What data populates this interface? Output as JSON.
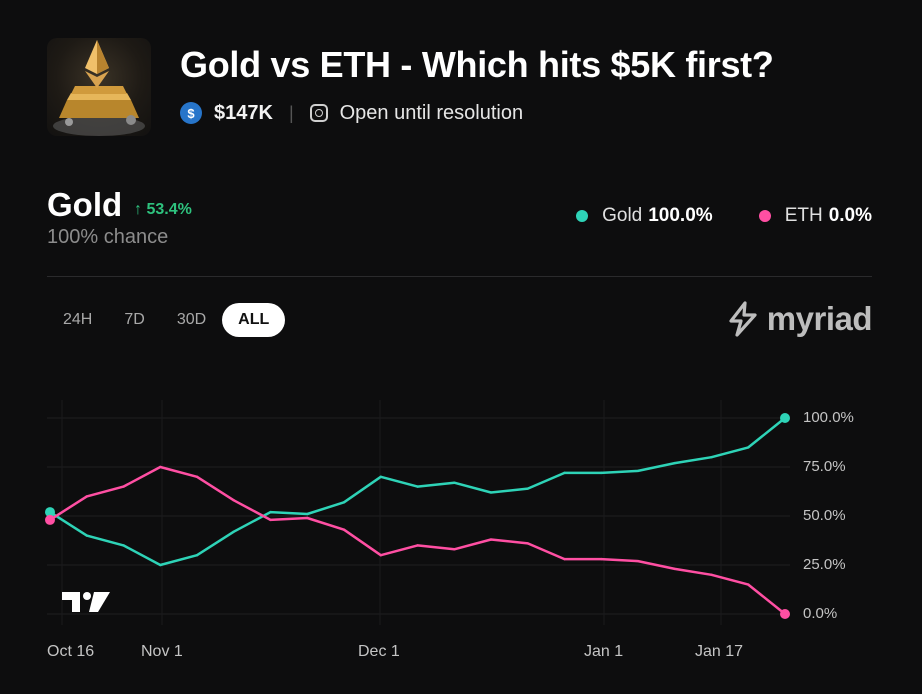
{
  "market": {
    "title": "Gold vs ETH - Which hits $5K first?",
    "volume": "$147K",
    "status": "Open until resolution"
  },
  "selected_outcome": {
    "name": "Gold",
    "change": "↑ 53.4%",
    "chance": "100% chance"
  },
  "legend": [
    {
      "name": "Gold",
      "value": "100.0%",
      "color": "#2ed3b7"
    },
    {
      "name": "ETH",
      "value": "0.0%",
      "color": "#ff4fa3"
    }
  ],
  "ranges": [
    "24H",
    "7D",
    "30D",
    "ALL"
  ],
  "active_range": "ALL",
  "brand": "myriad",
  "icons": {
    "token": "usdc-coin-icon",
    "status": "clock-icon",
    "brand": "myriad-logo-icon",
    "watermark": "tradingview-logo-icon"
  },
  "chart_data": {
    "type": "line",
    "x": [
      "Oct 15",
      "Oct 20",
      "Oct 25",
      "Oct 30",
      "Nov 4",
      "Nov 9",
      "Nov 14",
      "Nov 19",
      "Nov 24",
      "Nov 29",
      "Dec 4",
      "Dec 9",
      "Dec 14",
      "Dec 19",
      "Dec 24",
      "Dec 29",
      "Jan 3",
      "Jan 8",
      "Jan 13",
      "Jan 18",
      "Jan 21"
    ],
    "xticks": [
      "Oct 16",
      "Nov 1",
      "Dec 1",
      "Jan 1",
      "Jan 17"
    ],
    "yticks": [
      "100.0%",
      "75.0%",
      "50.0%",
      "25.0%",
      "0.0%"
    ],
    "ylim": [
      0,
      100
    ],
    "series": [
      {
        "name": "Gold",
        "color": "#2ed3b7",
        "values": [
          52,
          40,
          35,
          25,
          30,
          42,
          52,
          51,
          57,
          70,
          65,
          67,
          62,
          64,
          72,
          72,
          73,
          77,
          80,
          85,
          100
        ]
      },
      {
        "name": "ETH",
        "color": "#ff4fa3",
        "values": [
          48,
          60,
          65,
          75,
          70,
          58,
          48,
          49,
          43,
          30,
          35,
          33,
          38,
          36,
          28,
          28,
          27,
          23,
          20,
          15,
          0
        ]
      }
    ]
  }
}
